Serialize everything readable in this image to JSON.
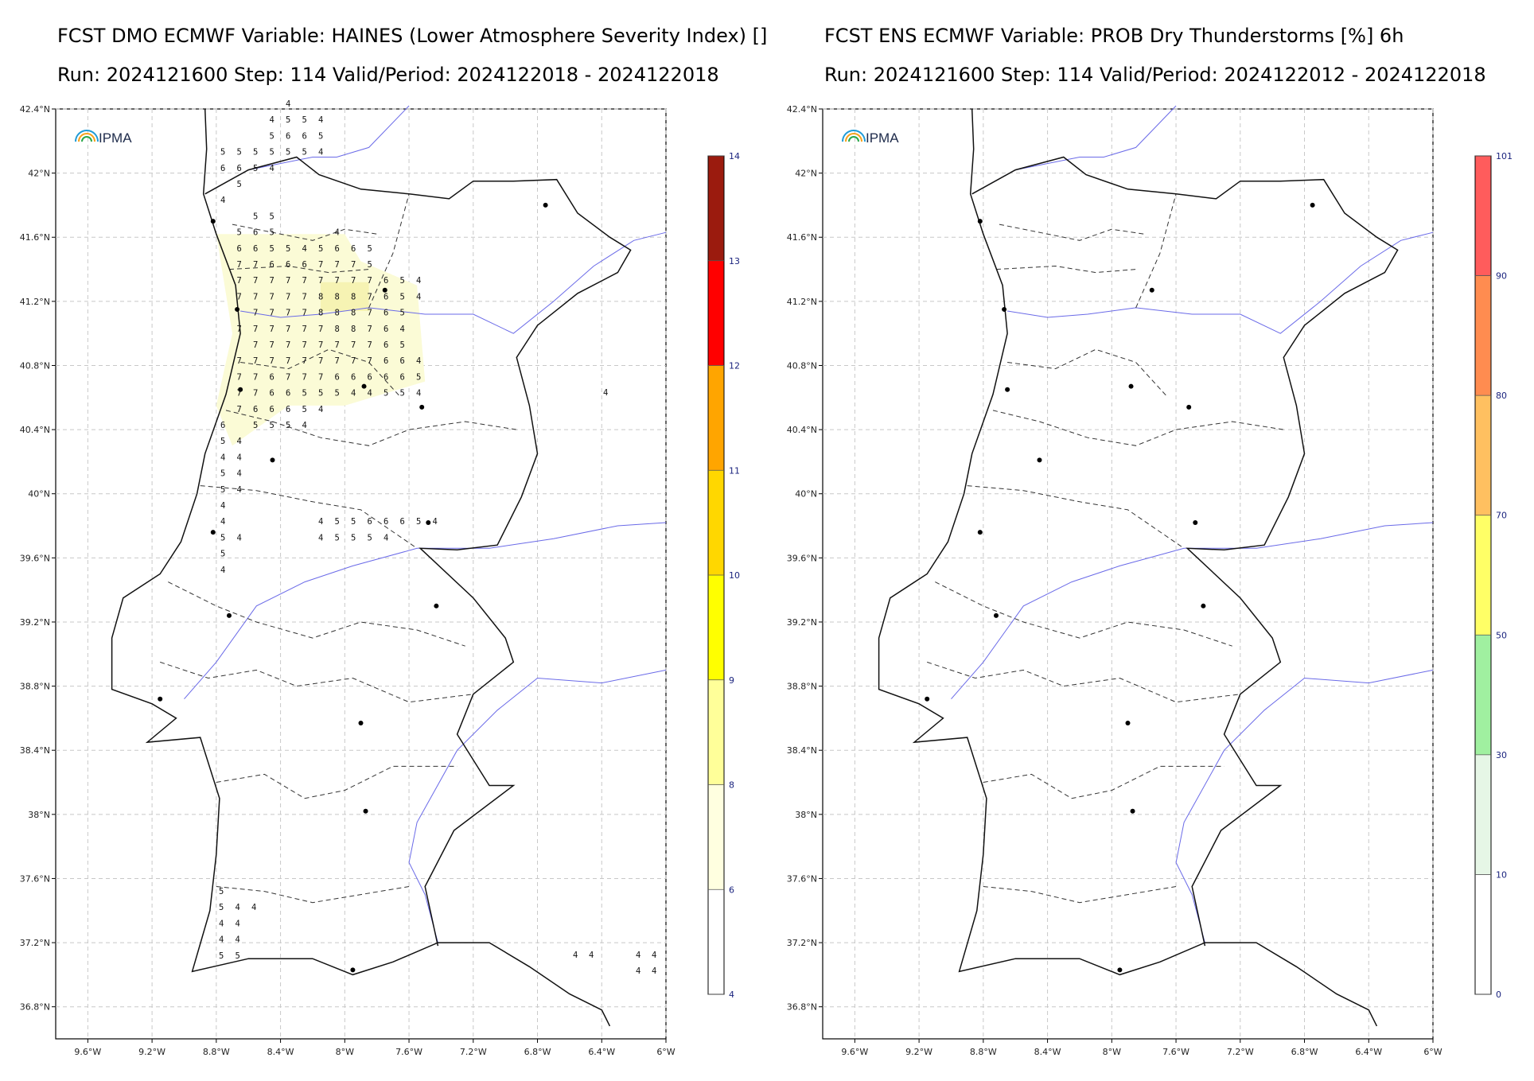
{
  "panels": [
    {
      "title1": "FCST DMO ECMWF Variable: HAINES (Lower Atmosphere Severity Index) []",
      "title2": "Run: 2024121600 Step: 114 Valid/Period: 2024122018 - 2024122018",
      "logo": "IPMA",
      "lat_ticks": [
        "42.4°N",
        "42°N",
        "41.6°N",
        "41.2°N",
        "40.8°N",
        "40.4°N",
        "40°N",
        "39.6°N",
        "39.2°N",
        "38.8°N",
        "38.4°N",
        "38°N",
        "37.6°N",
        "37.2°N",
        "36.8°N"
      ],
      "lon_ticks": [
        "9.6°W",
        "9.2°W",
        "8.8°W",
        "8.4°W",
        "8°W",
        "7.6°W",
        "7.2°W",
        "6.8°W",
        "6.4°W",
        "6°W"
      ],
      "colorbar": {
        "labels": [
          "14",
          "13",
          "12",
          "11",
          "10",
          "9",
          "8",
          "6",
          "4"
        ],
        "colors": [
          "#9b1b0e",
          "#ff0000",
          "#ffa500",
          "#ffd700",
          "#ffff00",
          "#ffff99",
          "#ffffe0",
          "#ffffff"
        ]
      }
    },
    {
      "title1": "FCST ENS ECMWF Variable: PROB Dry Thunderstorms [%] 6h",
      "title2": "Run: 2024121600 Step: 114 Valid/Period: 2024122012 - 2024122018",
      "logo": "IPMA",
      "lat_ticks": [
        "42.4°N",
        "42°N",
        "41.6°N",
        "41.2°N",
        "40.8°N",
        "40.4°N",
        "40°N",
        "39.6°N",
        "39.2°N",
        "38.8°N",
        "38.4°N",
        "38°N",
        "37.6°N",
        "37.2°N",
        "36.8°N"
      ],
      "lon_ticks": [
        "9.6°W",
        "9.2°W",
        "8.8°W",
        "8.4°W",
        "8°W",
        "7.6°W",
        "7.2°W",
        "6.8°W",
        "6.4°W",
        "6°W"
      ],
      "colorbar": {
        "labels": [
          "101",
          "90",
          "80",
          "70",
          "50",
          "30",
          "10",
          "0"
        ],
        "colors": [
          "#ff5c5c",
          "#ff8c50",
          "#ffc060",
          "#ffff66",
          "#a0f0a0",
          "#e6f6e6",
          "#ffffff"
        ]
      }
    }
  ],
  "haines_grid": [
    [
      "",
      "",
      "",
      "",
      "4",
      "",
      "",
      "",
      "",
      "",
      "",
      "",
      "",
      ""
    ],
    [
      "",
      "",
      "",
      "4",
      "5",
      "5",
      "4",
      "",
      "",
      "",
      "",
      "",
      "",
      ""
    ],
    [
      "",
      "",
      "",
      "5",
      "6",
      "6",
      "5",
      "",
      "",
      "",
      "",
      "",
      "",
      ""
    ],
    [
      "5",
      "5",
      "5",
      "5",
      "5",
      "5",
      "4",
      "",
      "",
      "",
      "",
      "",
      "",
      ""
    ],
    [
      "6",
      "6",
      "5",
      "4",
      "",
      "",
      "",
      "",
      "",
      "",
      "",
      "",
      "",
      ""
    ],
    [
      "",
      "5",
      "",
      "",
      "",
      "",
      "",
      "",
      "",
      "",
      "",
      "",
      "",
      ""
    ],
    [
      "4",
      "",
      "",
      "",
      "",
      "",
      "",
      "",
      "",
      "",
      "",
      "",
      "",
      ""
    ],
    [
      "",
      "",
      "5",
      "5",
      "",
      "",
      "",
      "",
      "",
      "",
      "",
      "",
      "",
      ""
    ],
    [
      "",
      "5",
      "6",
      "5",
      "",
      "",
      "",
      "4",
      "",
      "",
      "",
      "",
      "",
      ""
    ],
    [
      "",
      "6",
      "6",
      "5",
      "5",
      "4",
      "5",
      "6",
      "6",
      "5",
      "",
      "",
      "",
      ""
    ],
    [
      "",
      "7",
      "7",
      "6",
      "6",
      "6",
      "7",
      "7",
      "7",
      "5",
      "",
      "",
      "",
      ""
    ],
    [
      "",
      "7",
      "7",
      "7",
      "7",
      "7",
      "7",
      "7",
      "7",
      "7",
      "6",
      "5",
      "4",
      ""
    ],
    [
      "",
      "7",
      "7",
      "7",
      "7",
      "7",
      "8",
      "8",
      "8",
      "7",
      "6",
      "5",
      "4",
      ""
    ],
    [
      "",
      "",
      "7",
      "7",
      "7",
      "7",
      "8",
      "8",
      "8",
      "7",
      "6",
      "5",
      "",
      ""
    ],
    [
      "",
      "7",
      "7",
      "7",
      "7",
      "7",
      "7",
      "8",
      "8",
      "7",
      "6",
      "4",
      "",
      ""
    ],
    [
      "",
      "",
      "7",
      "7",
      "7",
      "7",
      "7",
      "7",
      "7",
      "7",
      "6",
      "5",
      "",
      ""
    ],
    [
      "",
      "7",
      "7",
      "7",
      "7",
      "7",
      "7",
      "7",
      "7",
      "7",
      "6",
      "6",
      "4",
      ""
    ],
    [
      "",
      "7",
      "7",
      "6",
      "7",
      "7",
      "7",
      "6",
      "6",
      "6",
      "6",
      "6",
      "5",
      ""
    ],
    [
      "",
      "7",
      "7",
      "6",
      "6",
      "5",
      "5",
      "5",
      "4",
      "4",
      "5",
      "5",
      "4",
      ""
    ],
    [
      "",
      "7",
      "6",
      "6",
      "6",
      "5",
      "4",
      "",
      "",
      "",
      "",
      "",
      "",
      ""
    ],
    [
      "6",
      "",
      "5",
      "5",
      "5",
      "4",
      "",
      "",
      "",
      "",
      "",
      "",
      "",
      ""
    ],
    [
      "5",
      "4",
      "",
      "",
      "",
      "",
      "",
      "",
      "",
      "",
      "",
      "",
      "",
      ""
    ],
    [
      "4",
      "4",
      "",
      "",
      "",
      "",
      "",
      "",
      "",
      "",
      "",
      "",
      "",
      ""
    ],
    [
      "5",
      "4",
      "",
      "",
      "",
      "",
      "",
      "",
      "",
      "",
      "",
      "",
      "",
      ""
    ],
    [
      "5",
      "4",
      "",
      "",
      "",
      "",
      "",
      "",
      "",
      "",
      "",
      "",
      "",
      ""
    ],
    [
      "4",
      "",
      "",
      "",
      "",
      "",
      "",
      "",
      "",
      "",
      "",
      "",
      "",
      ""
    ],
    [
      "4",
      "",
      "",
      "",
      "",
      "",
      "4",
      "5",
      "5",
      "6",
      "6",
      "6",
      "5",
      "4"
    ],
    [
      "5",
      "4",
      "",
      "",
      "",
      "",
      "4",
      "5",
      "5",
      "5",
      "4",
      "",
      "",
      ""
    ],
    [
      "5",
      "",
      "",
      "",
      "",
      "",
      "",
      "",
      "",
      "",
      "",
      "",
      "",
      ""
    ],
    [
      "4",
      "",
      "",
      "",
      "",
      "",
      "",
      "",
      "",
      "",
      "",
      "",
      "",
      ""
    ]
  ],
  "haines_south": [
    [
      "5",
      "",
      ""
    ],
    [
      "5",
      "4",
      "4"
    ],
    [
      "4",
      "4",
      ""
    ],
    [
      "4",
      "4",
      ""
    ],
    [
      "5",
      "5",
      ""
    ]
  ],
  "haines_east": [
    "4",
    "4",
    "4",
    "4",
    "4",
    "4",
    "4"
  ]
}
